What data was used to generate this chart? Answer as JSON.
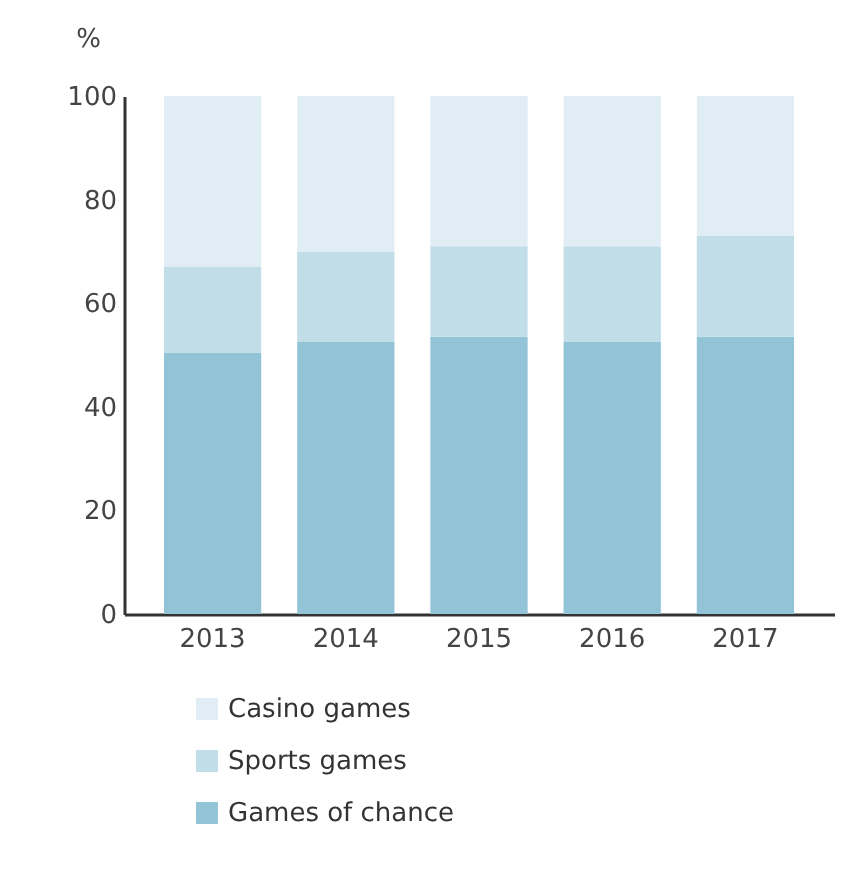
{
  "chart_data": {
    "type": "bar",
    "stacked": true,
    "ylabel": "%",
    "categories": [
      "2013",
      "2014",
      "2015",
      "2016",
      "2017"
    ],
    "ylim": [
      0,
      100
    ],
    "yticks": [
      0,
      20,
      40,
      60,
      80,
      100
    ],
    "grid": false,
    "legend": "bottom",
    "series": [
      {
        "name": "Games of chance",
        "color": "#92c3d7",
        "values": [
          50.5,
          52.5,
          53.5,
          52.5,
          53.5
        ]
      },
      {
        "name": "Sports games",
        "color": "#c1dde8",
        "values": [
          16.5,
          17.5,
          17.5,
          18.5,
          19.5
        ]
      },
      {
        "name": "Casino games",
        "color": "#e1edf5",
        "values": [
          33,
          30,
          29,
          29,
          27
        ]
      }
    ]
  }
}
